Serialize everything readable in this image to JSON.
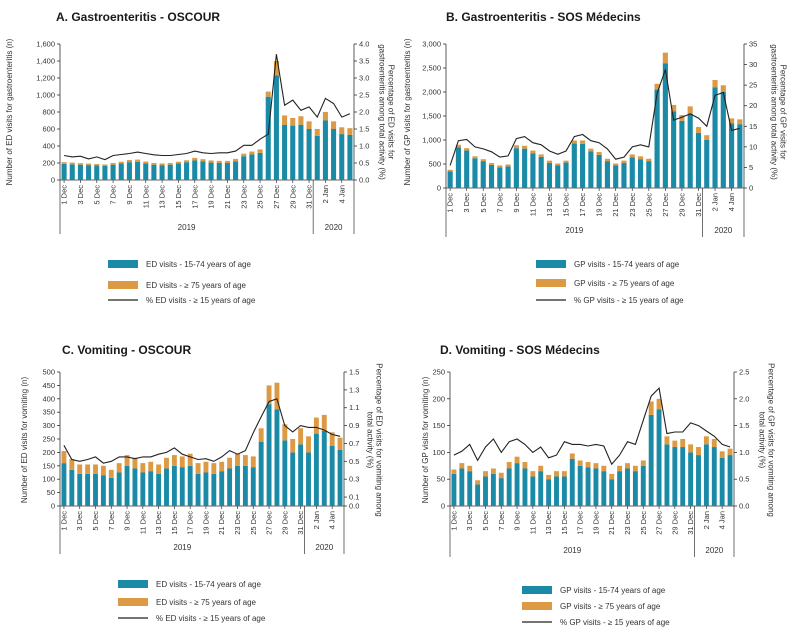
{
  "colors": {
    "young": "#1a8aa6",
    "old": "#dd9a44",
    "line": "#222222",
    "axis": "#333333"
  },
  "chart_data": [
    {
      "type": "bar",
      "title": "A. Gastroenteritis - OSCOUR",
      "ylabel": "Number of ED visits for gastroenteritis (n)",
      "y2label": "Percentage of ED visits for gastroenteritis among total activity (%)",
      "ylim": [
        0,
        1600
      ],
      "yticks": [
        "0",
        "200",
        "400",
        "600",
        "800",
        "1,000",
        "1,200",
        "1,400",
        "1,600"
      ],
      "y2lim": [
        0,
        4
      ],
      "y2ticks": [
        "0.0",
        "0.5",
        "1.0",
        "1.5",
        "2.0",
        "2.5",
        "3.0",
        "3.5",
        "4.0"
      ],
      "categories": [
        "1 Dec",
        "2 Dec",
        "3 Dec",
        "4 Dec",
        "5 Dec",
        "6 Dec",
        "7 Dec",
        "8 Dec",
        "9 Dec",
        "10 Dec",
        "11 Dec",
        "12 Dec",
        "13 Dec",
        "14 Dec",
        "15 Dec",
        "16 Dec",
        "17 Dec",
        "18 Dec",
        "19 Dec",
        "20 Dec",
        "21 Dec",
        "22 Dec",
        "23 Dec",
        "24 Dec",
        "25 Dec",
        "26 Dec",
        "27 Dec",
        "28 Dec",
        "29 Dec",
        "30 Dec",
        "31 Dec",
        "1 Jan",
        "2 Jan",
        "3 Jan",
        "4 Jan",
        "5 Jan"
      ],
      "xticklabels": [
        "1 Dec",
        "3 Dec",
        "5 Dec",
        "7 Dec",
        "9 Dec",
        "11 Dec",
        "13 Dec",
        "15 Dec",
        "17 Dec",
        "19 Dec",
        "21 Dec",
        "23 Dec",
        "25 Dec",
        "27 Dec",
        "29 Dec",
        "31 Dec",
        "2 Jan",
        "4 Jan"
      ],
      "years": [
        {
          "label": "2019",
          "at": 15
        },
        {
          "label": "2020",
          "at": 33
        }
      ],
      "year_divider_after": 30,
      "series": [
        {
          "name": "ED visits - 15-74 years of age",
          "kind": "bar",
          "values": [
            190,
            185,
            180,
            175,
            170,
            165,
            180,
            195,
            210,
            215,
            195,
            180,
            175,
            180,
            195,
            210,
            230,
            220,
            205,
            200,
            200,
            220,
            280,
            300,
            320,
            980,
            1230,
            650,
            640,
            650,
            600,
            520,
            700,
            600,
            540,
            530
          ]
        },
        {
          "name": "ED visits - ≥ 75 years of age",
          "kind": "bar",
          "values": [
            20,
            20,
            18,
            18,
            18,
            18,
            20,
            20,
            25,
            25,
            22,
            20,
            20,
            20,
            20,
            22,
            30,
            25,
            25,
            25,
            25,
            28,
            30,
            35,
            40,
            60,
            170,
            110,
            90,
            100,
            90,
            80,
            100,
            90,
            80,
            80
          ]
        },
        {
          "name": "% ED visits - ≥ 15 years of age",
          "kind": "line",
          "axis": "right",
          "values": [
            0.72,
            0.68,
            0.7,
            0.62,
            0.68,
            0.6,
            0.72,
            0.75,
            0.78,
            0.82,
            0.78,
            0.74,
            0.72,
            0.72,
            0.75,
            0.78,
            0.85,
            0.8,
            0.78,
            0.8,
            0.8,
            0.85,
            1.02,
            1.02,
            1.2,
            1.35,
            3.7,
            2.2,
            2.35,
            2.05,
            2.15,
            1.85,
            2.4,
            2.25,
            1.85,
            1.95
          ]
        }
      ]
    },
    {
      "type": "bar",
      "title": "B. Gastroenteritis - SOS Médecins",
      "ylabel": "Number of GP visits for gastroenteritis (n)",
      "y2label": "Percentage of GP visits for gastroenteritis among total activity (%)",
      "ylim": [
        0,
        3000
      ],
      "yticks": [
        "0",
        "500",
        "1,000",
        "1,500",
        "2,000",
        "2,500",
        "3,000"
      ],
      "y2lim": [
        0,
        35
      ],
      "y2ticks": [
        "0",
        "5",
        "10",
        "15",
        "20",
        "25",
        "30",
        "35"
      ],
      "categories": [
        "1 Dec",
        "2 Dec",
        "3 Dec",
        "4 Dec",
        "5 Dec",
        "6 Dec",
        "7 Dec",
        "8 Dec",
        "9 Dec",
        "10 Dec",
        "11 Dec",
        "12 Dec",
        "13 Dec",
        "14 Dec",
        "15 Dec",
        "16 Dec",
        "17 Dec",
        "18 Dec",
        "19 Dec",
        "20 Dec",
        "21 Dec",
        "22 Dec",
        "23 Dec",
        "24 Dec",
        "25 Dec",
        "26 Dec",
        "27 Dec",
        "28 Dec",
        "29 Dec",
        "30 Dec",
        "31 Dec",
        "1 Jan",
        "2 Jan",
        "3 Jan",
        "4 Jan",
        "5 Jan"
      ],
      "xticklabels": [
        "1 Dec",
        "3 Dec",
        "5 Dec",
        "7 Dec",
        "9 Dec",
        "11 Dec",
        "13 Dec",
        "15 Dec",
        "17 Dec",
        "19 Dec",
        "21 Dec",
        "23 Dec",
        "25 Dec",
        "27 Dec",
        "29 Dec",
        "31 Dec",
        "2 Jan",
        "4 Jan"
      ],
      "years": [
        {
          "label": "2019",
          "at": 15
        },
        {
          "label": "2020",
          "at": 33
        }
      ],
      "year_divider_after": 30,
      "series": [
        {
          "name": "GP visits - 15-74 years of age",
          "kind": "bar",
          "values": [
            350,
            850,
            780,
            620,
            560,
            480,
            430,
            450,
            830,
            820,
            720,
            650,
            520,
            470,
            530,
            930,
            920,
            760,
            690,
            560,
            470,
            520,
            640,
            600,
            560,
            2050,
            2600,
            1600,
            1400,
            1550,
            1150,
            1000,
            2100,
            2000,
            1350,
            1330
          ]
        },
        {
          "name": "GP visits - ≥ 75 years of age",
          "kind": "bar",
          "values": [
            30,
            50,
            50,
            40,
            40,
            40,
            40,
            40,
            60,
            60,
            60,
            50,
            50,
            40,
            40,
            60,
            70,
            60,
            60,
            50,
            40,
            50,
            60,
            60,
            50,
            120,
            220,
            130,
            120,
            150,
            120,
            100,
            150,
            140,
            100,
            100
          ]
        },
        {
          "name": "% GP visits - ≥ 15 years of age",
          "kind": "line",
          "axis": "right",
          "values": [
            5.5,
            11.5,
            11.8,
            10.0,
            9.5,
            8.8,
            7.5,
            7.8,
            12.0,
            12.5,
            11.0,
            10.5,
            9.0,
            8.2,
            9.0,
            12.5,
            13.0,
            11.5,
            11.0,
            9.5,
            7.0,
            7.5,
            10.0,
            10.5,
            10.0,
            23.0,
            28.8,
            16.5,
            17.2,
            18.0,
            17.0,
            15.0,
            22.5,
            23.2,
            14.0,
            14.5
          ]
        }
      ]
    },
    {
      "type": "bar",
      "title": "C. Vomiting - OSCOUR",
      "ylabel": "Number of ED visits for vomiting (n)",
      "y2label": "Percentage of ED visits for vomiting among total activity (%)",
      "ylim": [
        0,
        500
      ],
      "yticks": [
        "0",
        "50",
        "100",
        "150",
        "200",
        "250",
        "300",
        "350",
        "400",
        "450",
        "500"
      ],
      "y2lim": [
        0,
        1.5
      ],
      "y2ticks": [
        "0.0",
        "0.1",
        "0.3",
        "0.5",
        "0.7",
        "0.9",
        "1.1",
        "1.3",
        "1.5"
      ],
      "y2tickvalues": [
        0.0,
        0.1,
        0.3,
        0.5,
        0.7,
        0.9,
        1.1,
        1.3,
        1.5
      ],
      "categories": [
        "1 Dec",
        "2 Dec",
        "3 Dec",
        "4 Dec",
        "5 Dec",
        "6 Dec",
        "7 Dec",
        "8 Dec",
        "9 Dec",
        "10 Dec",
        "11 Dec",
        "12 Dec",
        "13 Dec",
        "14 Dec",
        "15 Dec",
        "16 Dec",
        "17 Dec",
        "18 Dec",
        "19 Dec",
        "20 Dec",
        "21 Dec",
        "22 Dec",
        "23 Dec",
        "24 Dec",
        "25 Dec",
        "26 Dec",
        "27 Dec",
        "28 Dec",
        "29 Dec",
        "30 Dec",
        "31 Dec",
        "1 Jan",
        "2 Jan",
        "3 Jan",
        "4 Jan",
        "5 Jan"
      ],
      "xticklabels": [
        "1 Dec",
        "3 Dec",
        "5 Dec",
        "7 Dec",
        "9 Dec",
        "11 Dec",
        "13 Dec",
        "15 Dec",
        "17 Dec",
        "19 Dec",
        "21 Dec",
        "23 Dec",
        "25 Dec",
        "27 Dec",
        "29 Dec",
        "31 Dec",
        "2 Jan",
        "4 Jan"
      ],
      "years": [
        {
          "label": "2019",
          "at": 15
        },
        {
          "label": "2020",
          "at": 33
        }
      ],
      "year_divider_after": 30,
      "series": [
        {
          "name": "ED visits - 15-74 years of age",
          "kind": "bar",
          "values": [
            160,
            135,
            120,
            120,
            120,
            115,
            105,
            125,
            150,
            140,
            125,
            130,
            120,
            140,
            150,
            145,
            150,
            120,
            125,
            120,
            130,
            140,
            150,
            150,
            145,
            240,
            380,
            360,
            245,
            200,
            230,
            200,
            270,
            280,
            225,
            210
          ]
        },
        {
          "name": "ED visits - ≥ 75 years of age",
          "kind": "bar",
          "values": [
            45,
            40,
            35,
            35,
            35,
            35,
            30,
            35,
            40,
            40,
            35,
            35,
            35,
            40,
            40,
            40,
            45,
            40,
            40,
            40,
            35,
            40,
            45,
            40,
            40,
            50,
            70,
            100,
            60,
            50,
            60,
            60,
            60,
            60,
            50,
            45
          ]
        },
        {
          "name": "% ED visits - ≥ 15 years of age",
          "kind": "line",
          "axis": "right",
          "values": [
            0.68,
            0.52,
            0.5,
            0.52,
            0.55,
            0.48,
            0.5,
            0.55,
            0.55,
            0.53,
            0.55,
            0.55,
            0.58,
            0.6,
            0.65,
            0.58,
            0.55,
            0.52,
            0.53,
            0.5,
            0.55,
            0.62,
            0.58,
            0.62,
            0.82,
            1.0,
            1.17,
            1.2,
            0.9,
            0.83,
            0.9,
            0.88,
            0.88,
            0.85,
            0.8,
            0.78
          ]
        }
      ]
    },
    {
      "type": "bar",
      "title": "D. Vomiting - SOS Médecins",
      "ylabel": "Number of GP visits for vomiting (n)",
      "y2label": "Percentage of GP visits for vomiting among total activity (%)",
      "ylim": [
        0,
        250
      ],
      "yticks": [
        "0",
        "50",
        "100",
        "150",
        "200",
        "250"
      ],
      "y2lim": [
        0,
        2.5
      ],
      "y2ticks": [
        "0.0",
        "0.5",
        "1.0",
        "1.5",
        "2.0",
        "2.5"
      ],
      "categories": [
        "1 Dec",
        "2 Dec",
        "3 Dec",
        "4 Dec",
        "5 Dec",
        "6 Dec",
        "7 Dec",
        "8 Dec",
        "9 Dec",
        "10 Dec",
        "11 Dec",
        "12 Dec",
        "13 Dec",
        "14 Dec",
        "15 Dec",
        "16 Dec",
        "17 Dec",
        "18 Dec",
        "19 Dec",
        "20 Dec",
        "21 Dec",
        "22 Dec",
        "23 Dec",
        "24 Dec",
        "25 Dec",
        "26 Dec",
        "27 Dec",
        "28 Dec",
        "29 Dec",
        "30 Dec",
        "31 Dec",
        "1 Jan",
        "2 Jan",
        "3 Jan",
        "4 Jan",
        "5 Jan"
      ],
      "xticklabels": [
        "1 Dec",
        "3 Dec",
        "5 Dec",
        "7 Dec",
        "9 Dec",
        "11 Dec",
        "13 Dec",
        "15 Dec",
        "17 Dec",
        "19 Dec",
        "21 Dec",
        "23 Dec",
        "25 Dec",
        "27 Dec",
        "29 Dec",
        "31 Dec",
        "2 Jan",
        "4 Jan"
      ],
      "years": [
        {
          "label": "2019",
          "at": 15
        },
        {
          "label": "2020",
          "at": 33
        }
      ],
      "year_divider_after": 30,
      "series": [
        {
          "name": "GP visits - 15-74 years of age",
          "kind": "bar",
          "values": [
            60,
            70,
            65,
            40,
            55,
            60,
            52,
            70,
            80,
            70,
            55,
            65,
            50,
            55,
            55,
            88,
            75,
            72,
            70,
            65,
            50,
            65,
            70,
            65,
            75,
            170,
            180,
            115,
            110,
            110,
            100,
            95,
            115,
            110,
            90,
            95
          ]
        },
        {
          "name": "GP visits - ≥ 75 years of age",
          "kind": "bar",
          "values": [
            8,
            10,
            10,
            8,
            10,
            10,
            10,
            12,
            12,
            12,
            10,
            10,
            8,
            10,
            10,
            10,
            10,
            10,
            10,
            10,
            10,
            10,
            10,
            10,
            10,
            25,
            20,
            15,
            12,
            15,
            15,
            15,
            15,
            15,
            12,
            12
          ]
        },
        {
          "name": "% GP visits - ≥ 15 years of age",
          "kind": "line",
          "axis": "right",
          "values": [
            0.95,
            1.02,
            1.15,
            0.85,
            1.1,
            1.25,
            1.0,
            1.2,
            1.25,
            1.15,
            1.0,
            1.1,
            0.9,
            0.95,
            1.2,
            1.15,
            1.15,
            1.12,
            1.15,
            1.12,
            0.78,
            0.95,
            1.2,
            1.15,
            1.6,
            2.05,
            2.2,
            1.35,
            1.38,
            1.38,
            1.55,
            1.5,
            1.4,
            1.3,
            1.15,
            1.1
          ]
        }
      ]
    }
  ]
}
